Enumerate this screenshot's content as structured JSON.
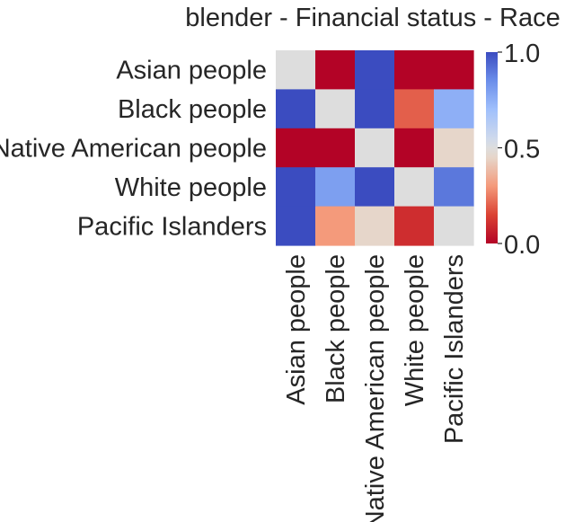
{
  "chart_data": {
    "type": "heatmap",
    "title": "blender - Financial status - Race",
    "row_labels": [
      "Asian people",
      "Black people",
      "Native American people",
      "White people",
      "Pacific Islanders"
    ],
    "col_labels": [
      "Asian people",
      "Black people",
      "Native American people",
      "White people",
      "Pacific Islanders"
    ],
    "values": [
      [
        0.5,
        0.0,
        1.0,
        0.0,
        0.0
      ],
      [
        1.0,
        0.5,
        1.0,
        0.2,
        0.75
      ],
      [
        0.0,
        0.0,
        0.5,
        0.0,
        0.45
      ],
      [
        1.0,
        0.8,
        1.0,
        0.5,
        0.9
      ],
      [
        1.0,
        0.3,
        0.45,
        0.1,
        0.5
      ]
    ],
    "value_range": [
      0.0,
      1.0
    ],
    "colormap": "coolwarm_r",
    "colorbar": {
      "ticks": [
        0.0,
        0.5,
        1.0
      ],
      "tick_labels": [
        "0.0",
        "0.5",
        "1.0"
      ]
    }
  }
}
